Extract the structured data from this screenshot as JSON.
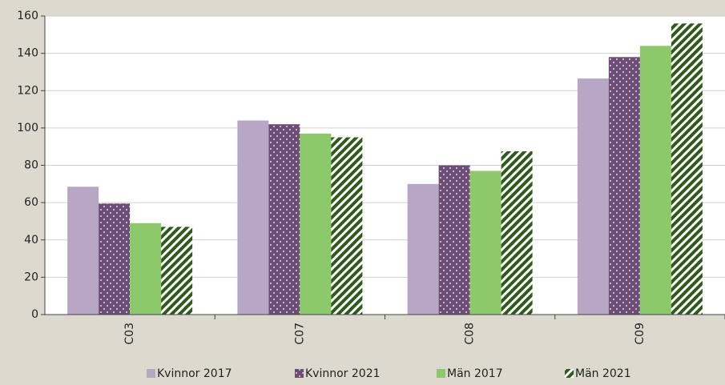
{
  "chart_data": {
    "type": "bar",
    "categories": [
      "C03",
      "C07",
      "C08",
      "C09"
    ],
    "series": [
      {
        "name": "Kvinnor 2017",
        "color": "#b8a6c5",
        "values": [
          68.5,
          104,
          70,
          126.5
        ]
      },
      {
        "name": "Kvinnor 2021",
        "color": "#6b4d75",
        "pattern": "dots",
        "values": [
          59.5,
          102,
          80,
          138
        ]
      },
      {
        "name": "Män 2017",
        "color": "#8cc96a",
        "values": [
          49,
          97,
          77,
          144
        ]
      },
      {
        "name": "Män 2021",
        "color": "#2f5a1c",
        "pattern": "stripes",
        "values": [
          47,
          95,
          87.5,
          156
        ]
      }
    ],
    "ylim": [
      0,
      160
    ],
    "yticks": [
      0,
      20,
      40,
      60,
      80,
      100,
      120,
      140,
      160
    ],
    "grid": true,
    "legend": "bottom"
  }
}
